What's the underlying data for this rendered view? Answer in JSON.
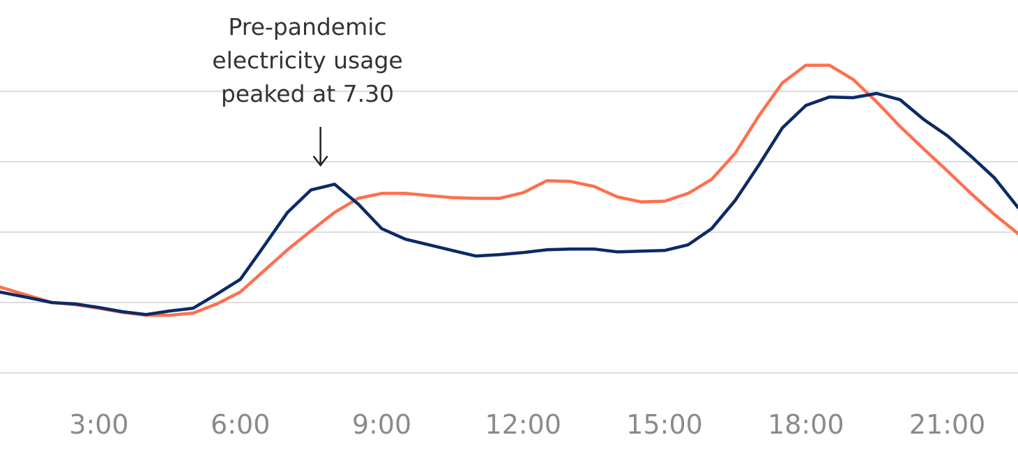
{
  "chart_data": {
    "type": "line",
    "title": "",
    "xlabel": "",
    "ylabel": "",
    "xlim": [
      0,
      24
    ],
    "ylim": [
      0,
      5
    ],
    "grid": true,
    "x_ticks": [
      {
        "value": 3,
        "label": "3:00"
      },
      {
        "value": 6,
        "label": "6:00"
      },
      {
        "value": 9,
        "label": "9:00"
      },
      {
        "value": 12,
        "label": "12:00"
      },
      {
        "value": 15,
        "label": "15:00"
      },
      {
        "value": 18,
        "label": "18:00"
      },
      {
        "value": 21,
        "label": "21:00"
      }
    ],
    "y_gridlines": [
      0,
      1,
      2,
      3,
      4
    ],
    "series": [
      {
        "color": "#ff6f4e",
        "points": [
          [
            0.9,
            1.22
          ],
          [
            1.5,
            1.1
          ],
          [
            2.0,
            1.0
          ],
          [
            2.5,
            0.97
          ],
          [
            3.0,
            0.92
          ],
          [
            3.5,
            0.86
          ],
          [
            4.0,
            0.82
          ],
          [
            4.5,
            0.82
          ],
          [
            5.0,
            0.85
          ],
          [
            5.5,
            0.98
          ],
          [
            6.0,
            1.15
          ],
          [
            6.5,
            1.45
          ],
          [
            7.0,
            1.75
          ],
          [
            7.5,
            2.02
          ],
          [
            8.0,
            2.28
          ],
          [
            8.5,
            2.48
          ],
          [
            9.0,
            2.55
          ],
          [
            9.5,
            2.55
          ],
          [
            10.0,
            2.52
          ],
          [
            10.5,
            2.49
          ],
          [
            11.0,
            2.48
          ],
          [
            11.5,
            2.48
          ],
          [
            12.0,
            2.56
          ],
          [
            12.5,
            2.73
          ],
          [
            13.0,
            2.72
          ],
          [
            13.5,
            2.65
          ],
          [
            14.0,
            2.5
          ],
          [
            14.5,
            2.43
          ],
          [
            15.0,
            2.44
          ],
          [
            15.5,
            2.55
          ],
          [
            16.0,
            2.75
          ],
          [
            16.5,
            3.12
          ],
          [
            17.0,
            3.65
          ],
          [
            17.5,
            4.12
          ],
          [
            18.0,
            4.37
          ],
          [
            18.5,
            4.37
          ],
          [
            19.0,
            4.17
          ],
          [
            19.5,
            3.85
          ],
          [
            20.0,
            3.5
          ],
          [
            20.5,
            3.18
          ],
          [
            21.0,
            2.87
          ],
          [
            21.5,
            2.55
          ],
          [
            22.0,
            2.25
          ],
          [
            22.5,
            1.98
          ]
        ]
      },
      {
        "color": "#0b2a66",
        "points": [
          [
            0.9,
            1.15
          ],
          [
            1.5,
            1.07
          ],
          [
            2.0,
            1.0
          ],
          [
            2.5,
            0.98
          ],
          [
            3.0,
            0.93
          ],
          [
            3.5,
            0.87
          ],
          [
            4.0,
            0.83
          ],
          [
            4.5,
            0.88
          ],
          [
            5.0,
            0.92
          ],
          [
            5.5,
            1.12
          ],
          [
            6.0,
            1.33
          ],
          [
            6.5,
            1.8
          ],
          [
            7.0,
            2.28
          ],
          [
            7.5,
            2.6
          ],
          [
            8.0,
            2.68
          ],
          [
            8.5,
            2.4
          ],
          [
            9.0,
            2.05
          ],
          [
            9.5,
            1.9
          ],
          [
            10.0,
            1.82
          ],
          [
            10.5,
            1.74
          ],
          [
            11.0,
            1.66
          ],
          [
            11.5,
            1.68
          ],
          [
            12.0,
            1.71
          ],
          [
            12.5,
            1.75
          ],
          [
            13.0,
            1.76
          ],
          [
            13.5,
            1.76
          ],
          [
            14.0,
            1.72
          ],
          [
            14.5,
            1.73
          ],
          [
            15.0,
            1.74
          ],
          [
            15.5,
            1.82
          ],
          [
            16.0,
            2.05
          ],
          [
            16.5,
            2.45
          ],
          [
            17.0,
            2.95
          ],
          [
            17.5,
            3.48
          ],
          [
            18.0,
            3.8
          ],
          [
            18.5,
            3.92
          ],
          [
            19.0,
            3.91
          ],
          [
            19.5,
            3.97
          ],
          [
            20.0,
            3.88
          ],
          [
            20.5,
            3.6
          ],
          [
            21.0,
            3.37
          ],
          [
            21.5,
            3.08
          ],
          [
            22.0,
            2.77
          ],
          [
            22.5,
            2.35
          ]
        ]
      }
    ],
    "annotation": {
      "lines": [
        "Pre-pandemic",
        "electricity usage",
        "peaked at 7.30"
      ],
      "arrow_to": [
        7.7,
        2.95
      ]
    }
  }
}
